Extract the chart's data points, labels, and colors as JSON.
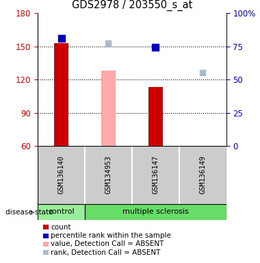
{
  "title": "GDS2978 / 203550_s_at",
  "samples": [
    "GSM136140",
    "GSM134953",
    "GSM136147",
    "GSM136149"
  ],
  "groups": [
    "control",
    "multiple sclerosis",
    "multiple sclerosis",
    "multiple sclerosis"
  ],
  "bar_values": [
    153,
    null,
    113,
    null
  ],
  "bar_absent_values": [
    null,
    128,
    null,
    null
  ],
  "bar_colors_present": "#cc0000",
  "bar_colors_absent": "#ffaaaa",
  "dot_values": [
    157,
    null,
    149,
    null
  ],
  "dot_absent_values": [
    null,
    153,
    null,
    126
  ],
  "dot_color_present": "#0000bb",
  "dot_color_absent": "#aabbcc",
  "ylim": [
    60,
    180
  ],
  "yticks": [
    60,
    90,
    120,
    150,
    180
  ],
  "yticks_right_labels": [
    "0",
    "25",
    "50",
    "75",
    "100%"
  ],
  "yticks_right_pos": [
    60,
    90,
    120,
    150,
    180
  ],
  "ybase": 60,
  "group_colors": {
    "control": "#99ee99",
    "multiple sclerosis": "#66dd66"
  },
  "legend_items": [
    {
      "color": "#cc0000",
      "label": "count"
    },
    {
      "color": "#0000bb",
      "label": "percentile rank within the sample"
    },
    {
      "color": "#ffaaaa",
      "label": "value, Detection Call = ABSENT"
    },
    {
      "color": "#aabbcc",
      "label": "rank, Detection Call = ABSENT"
    }
  ],
  "disease_state_label": "disease state",
  "left_axis_color": "#cc0000",
  "right_axis_color": "#0000bb",
  "bar_width": 0.3,
  "dot_size": 55,
  "dot_absent_size": 35
}
